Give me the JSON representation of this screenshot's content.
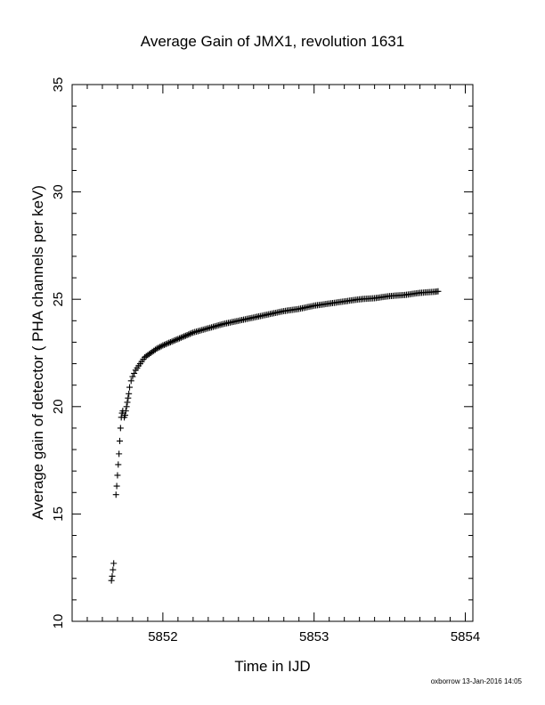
{
  "chart_data": {
    "type": "scatter",
    "title": "Average Gain of JMX1, revolution 1631",
    "xlabel": "Time in IJD",
    "ylabel": "Average gain of detector ( PHA channels per keV)",
    "xlim": [
      5851.4,
      5854.05
    ],
    "ylim": [
      10,
      35
    ],
    "xticks": [
      5852,
      5853,
      5854
    ],
    "xtick_labels": [
      "5852",
      "5853",
      "5854"
    ],
    "yticks": [
      10,
      15,
      20,
      25,
      30,
      35
    ],
    "ytick_labels": [
      "10",
      "15",
      "20",
      "25",
      "30",
      "35"
    ],
    "grid": false,
    "legend": "none",
    "marker": "plus",
    "color": "#000000",
    "series": [
      {
        "x": [
          5851.66,
          5851.665,
          5851.67,
          5851.675,
          5851.69,
          5851.695,
          5851.7,
          5851.705,
          5851.71,
          5851.715,
          5851.72,
          5851.725,
          5851.73,
          5851.735,
          5851.745,
          5851.75,
          5851.755,
          5851.76,
          5851.765,
          5851.77,
          5851.775,
          5851.78,
          5851.79,
          5851.8,
          5851.82,
          5851.85,
          5851.88,
          5851.92,
          5851.96,
          5852.0,
          5852.05,
          5852.1,
          5852.15,
          5852.2,
          5852.3,
          5852.4,
          5852.5,
          5852.6,
          5852.7,
          5852.8,
          5852.9,
          5853.0,
          5853.1,
          5853.2,
          5853.3,
          5853.4,
          5853.5,
          5853.6,
          5853.7,
          5853.8,
          5853.82
        ],
        "y": [
          11.9,
          12.1,
          12.4,
          12.7,
          15.9,
          16.3,
          16.8,
          17.3,
          17.8,
          18.4,
          19.0,
          19.5,
          19.7,
          19.8,
          19.5,
          19.6,
          19.8,
          20.0,
          20.2,
          20.4,
          20.6,
          20.9,
          21.2,
          21.4,
          21.7,
          22.0,
          22.3,
          22.5,
          22.7,
          22.85,
          23.0,
          23.15,
          23.3,
          23.45,
          23.65,
          23.85,
          24.0,
          24.15,
          24.3,
          24.45,
          24.55,
          24.7,
          24.8,
          24.9,
          25.0,
          25.05,
          25.15,
          25.2,
          25.3,
          25.35,
          25.37
        ]
      }
    ]
  },
  "footer": {
    "credit": "oxborrow 13-Jan-2016 14:05"
  }
}
